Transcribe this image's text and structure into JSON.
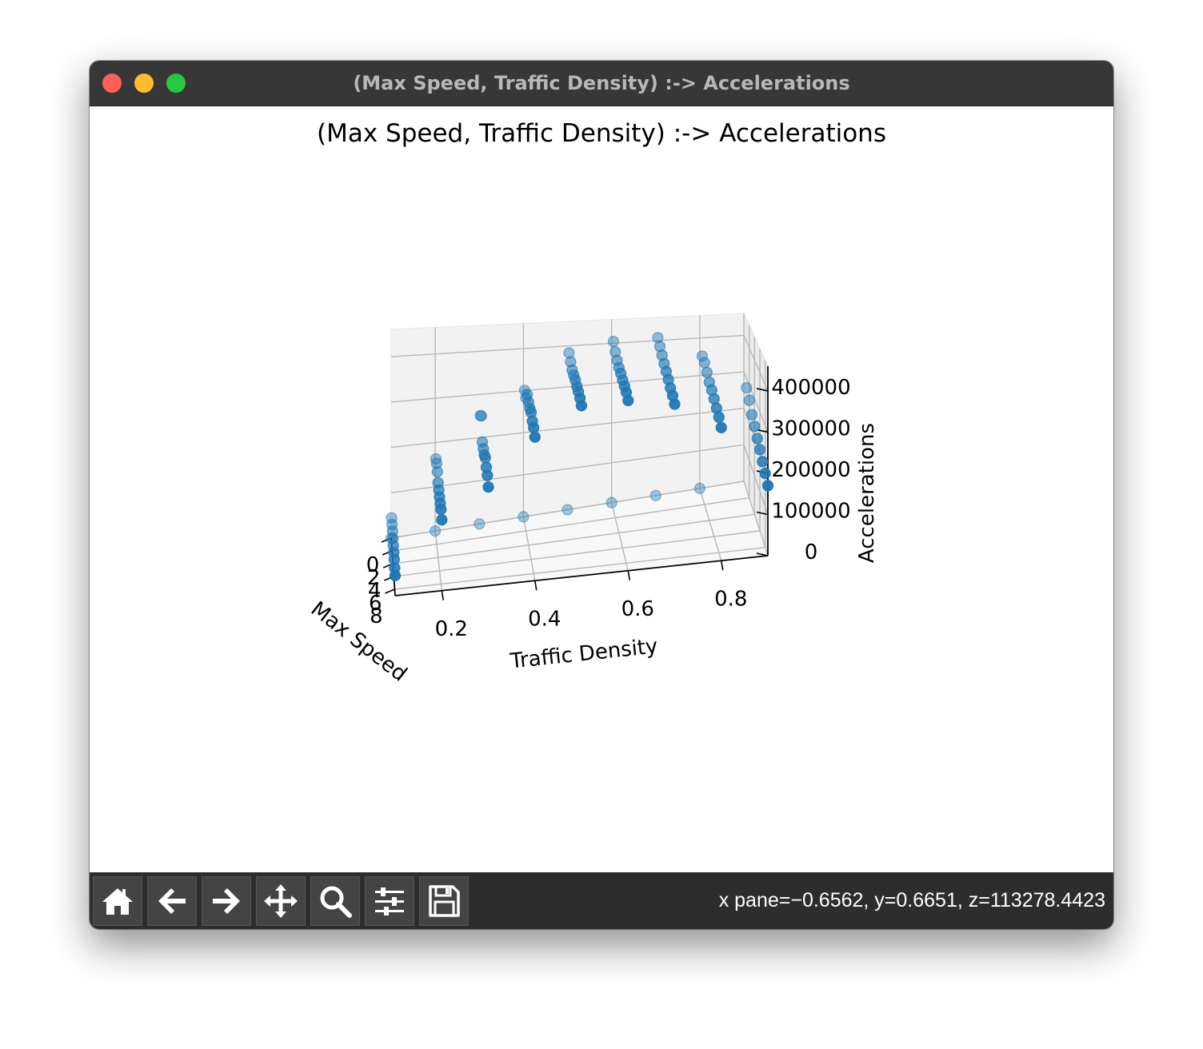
{
  "window": {
    "title": "(Max Speed, Traffic Density) :-> Accelerations"
  },
  "toolbar": {
    "buttons": [
      {
        "name": "home-button",
        "icon": "home-icon"
      },
      {
        "name": "back-button",
        "icon": "arrow-left-icon"
      },
      {
        "name": "forward-button",
        "icon": "arrow-right-icon"
      },
      {
        "name": "pan-button",
        "icon": "move-icon"
      },
      {
        "name": "zoom-button",
        "icon": "magnifier-icon"
      },
      {
        "name": "configure-subplots-button",
        "icon": "sliders-icon"
      },
      {
        "name": "save-button",
        "icon": "floppy-disk-icon"
      }
    ],
    "coordinates": "x pane=−0.6562, y=0.6651, z=113278.4423"
  },
  "colors": {
    "titlebar": "#373737",
    "toolbar": "#2d2d2d",
    "marker": "#1f77b4",
    "pane": "#f2f2f2",
    "grid": "#b0b0b0"
  },
  "chart_data": {
    "type": "scatter",
    "projection": "3d",
    "title": "(Max Speed, Traffic Density) :-> Accelerations",
    "xlabel": "Max Speed",
    "ylabel": "Traffic Density",
    "zlabel": "Accelerations",
    "x_ticks": [
      "0",
      "2",
      "4",
      "6",
      "8"
    ],
    "y_ticks": [
      "0.2",
      "0.4",
      "0.6",
      "0.8"
    ],
    "z_ticks": [
      "0",
      "100000",
      "200000",
      "300000",
      "400000"
    ],
    "xlim": [
      0,
      9
    ],
    "ylim": [
      0.1,
      0.9
    ],
    "zlim": [
      0,
      460000
    ],
    "grid": true,
    "marker_color": "#1f77b4",
    "series": [
      {
        "values": [
          [
            0,
            0.1,
            0
          ],
          [
            0,
            0.2,
            0
          ],
          [
            0,
            0.3,
            0
          ],
          [
            0,
            0.4,
            0
          ],
          [
            0,
            0.5,
            0
          ],
          [
            0,
            0.6,
            0
          ],
          [
            0,
            0.7,
            0
          ],
          [
            0,
            0.8,
            0
          ]
        ]
      },
      {
        "values": [
          [
            1,
            0.1,
            57000
          ],
          [
            2,
            0.1,
            55000
          ],
          [
            3,
            0.1,
            53000
          ],
          [
            4,
            0.1,
            50000
          ],
          [
            5,
            0.1,
            47000
          ],
          [
            6,
            0.1,
            45000
          ],
          [
            7,
            0.1,
            43000
          ],
          [
            8,
            0.1,
            38000
          ],
          [
            9,
            0.1,
            35000
          ]
        ]
      },
      {
        "values": [
          [
            1,
            0.2,
            173000
          ],
          [
            2,
            0.2,
            173000
          ],
          [
            3,
            0.2,
            165000
          ],
          [
            4,
            0.2,
            152000
          ],
          [
            5,
            0.2,
            147000
          ],
          [
            6,
            0.2,
            143000
          ],
          [
            7,
            0.2,
            140000
          ],
          [
            8,
            0.2,
            138000
          ],
          [
            9,
            0.2,
            128000
          ]
        ]
      },
      {
        "values": [
          [
            1,
            0.3,
            260000
          ],
          [
            2,
            0.3,
            268000
          ],
          [
            3,
            0.3,
            220000
          ],
          [
            4,
            0.3,
            215000
          ],
          [
            5,
            0.3,
            212000
          ],
          [
            6,
            0.3,
            215000
          ],
          [
            7,
            0.3,
            205000
          ],
          [
            8,
            0.3,
            198000
          ],
          [
            9,
            0.3,
            185000
          ]
        ]
      },
      {
        "values": [
          [
            1,
            0.4,
            310000
          ],
          [
            2,
            0.4,
            302000
          ],
          [
            3,
            0.4,
            318000
          ],
          [
            4,
            0.4,
            310000
          ],
          [
            5,
            0.4,
            305000
          ],
          [
            6,
            0.4,
            305000
          ],
          [
            7,
            0.4,
            295000
          ],
          [
            8,
            0.4,
            290000
          ],
          [
            9,
            0.4,
            280000
          ]
        ]
      },
      {
        "values": [
          [
            1,
            0.5,
            392000
          ],
          [
            2,
            0.5,
            380000
          ],
          [
            3,
            0.5,
            370000
          ],
          [
            4,
            0.5,
            367000
          ],
          [
            5,
            0.5,
            365000
          ],
          [
            6,
            0.5,
            360000
          ],
          [
            7,
            0.5,
            357000
          ],
          [
            8,
            0.5,
            352000
          ],
          [
            9,
            0.5,
            345000
          ]
        ]
      },
      {
        "values": [
          [
            1,
            0.6,
            415000
          ],
          [
            2,
            0.6,
            400000
          ],
          [
            3,
            0.6,
            390000
          ],
          [
            4,
            0.6,
            383000
          ],
          [
            5,
            0.6,
            380000
          ],
          [
            6,
            0.6,
            375000
          ],
          [
            7,
            0.6,
            372000
          ],
          [
            8,
            0.6,
            368000
          ],
          [
            9,
            0.6,
            360000
          ]
        ]
      },
      {
        "values": [
          [
            1,
            0.7,
            420000
          ],
          [
            2,
            0.7,
            410000
          ],
          [
            3,
            0.7,
            400000
          ],
          [
            4,
            0.7,
            392000
          ],
          [
            5,
            0.7,
            385000
          ],
          [
            6,
            0.7,
            378000
          ],
          [
            7,
            0.7,
            370000
          ],
          [
            8,
            0.7,
            365000
          ],
          [
            9,
            0.7,
            357000
          ]
        ]
      },
      {
        "values": [
          [
            1,
            0.8,
            367000
          ],
          [
            2,
            0.8,
            365000
          ],
          [
            3,
            0.8,
            355000
          ],
          [
            4,
            0.8,
            345000
          ],
          [
            5,
            0.8,
            340000
          ],
          [
            6,
            0.8,
            333000
          ],
          [
            7,
            0.8,
            325000
          ],
          [
            8,
            0.8,
            318000
          ],
          [
            9,
            0.8,
            308000
          ]
        ]
      },
      {
        "values": [
          [
            1,
            0.9,
            275000
          ],
          [
            2,
            0.9,
            260000
          ],
          [
            3,
            0.9,
            240000
          ],
          [
            4,
            0.9,
            228000
          ],
          [
            5,
            0.9,
            215000
          ],
          [
            6,
            0.9,
            205000
          ],
          [
            7,
            0.9,
            193000
          ],
          [
            8,
            0.9,
            182000
          ],
          [
            9,
            0.9,
            170000
          ]
        ]
      }
    ]
  }
}
